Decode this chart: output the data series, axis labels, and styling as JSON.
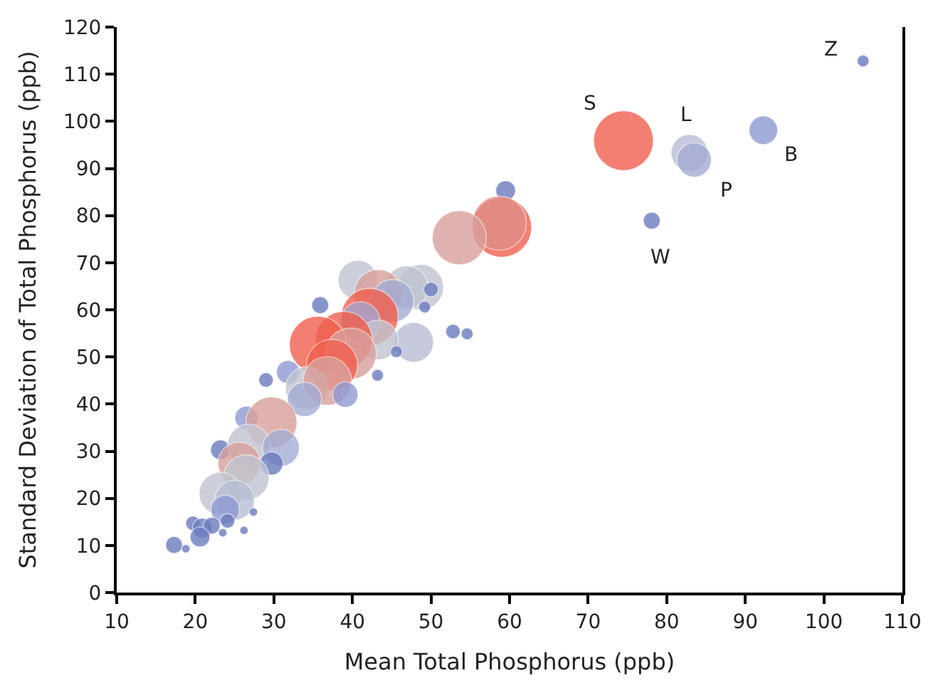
{
  "chart_data": {
    "type": "bubble",
    "xlabel": "Mean Total Phosphorus (ppb)",
    "ylabel": "Standard Deviation of Total Phosphorus (ppb)",
    "xlim": [
      10,
      110
    ],
    "xticks": [
      10,
      20,
      30,
      40,
      50,
      60,
      70,
      80,
      90,
      100,
      110
    ],
    "ylim": [
      0,
      120
    ],
    "yticks": [
      0,
      10,
      20,
      30,
      40,
      50,
      60,
      70,
      80,
      90,
      100,
      110,
      120
    ],
    "x": [
      105,
      74.5,
      82.9,
      83.5,
      92.3,
      78.1,
      59.5,
      59.0,
      58.7,
      53.6,
      40.7,
      48.7,
      46.9,
      43.3,
      45.1,
      50.0,
      49.2,
      35.9,
      42.2,
      41.0,
      52.8,
      54.6,
      47.8,
      43.3,
      45.6,
      38.9,
      35.6,
      39.8,
      37.4,
      43.2,
      29.0,
      31.8,
      34.2,
      36.8,
      39.1,
      33.9,
      26.5,
      29.7,
      23.2,
      26.8,
      30.9,
      25.6,
      29.7,
      26.5,
      23.2,
      25.0,
      23.8,
      27.4,
      19.7,
      20.9,
      22.1,
      20.6,
      23.5,
      26.2,
      17.3,
      18.8,
      24.1
    ],
    "values": [
      112.8,
      95.9,
      93.3,
      91.8,
      98.1,
      78.9,
      85.3,
      77.5,
      78.4,
      75.3,
      66.3,
      64.8,
      64.8,
      63.4,
      61.9,
      64.3,
      60.6,
      61.0,
      58.5,
      57.5,
      55.4,
      54.9,
      53.1,
      53.6,
      51.1,
      53.6,
      52.6,
      50.7,
      48.3,
      46.1,
      45.1,
      46.8,
      43.4,
      44.9,
      42.0,
      41.0,
      37.1,
      36.1,
      30.3,
      31.2,
      30.7,
      27.4,
      27.4,
      24.4,
      21.0,
      19.6,
      17.6,
      17.1,
      14.7,
      13.7,
      14.2,
      11.8,
      12.7,
      13.2,
      10.1,
      9.3,
      15.2
    ],
    "sizes": [
      0.04,
      1,
      0.38,
      0.33,
      0.23,
      0.08,
      0.11,
      1,
      0.82,
      0.82,
      0.44,
      0.58,
      0.51,
      0.66,
      0.51,
      0.06,
      0.04,
      0.08,
      0.91,
      0.44,
      0.06,
      0.04,
      0.44,
      0.44,
      0.04,
      0.91,
      0.91,
      0.73,
      0.73,
      0.04,
      0.06,
      0.15,
      0.51,
      0.66,
      0.18,
      0.33,
      0.15,
      0.73,
      0.11,
      0.51,
      0.38,
      0.51,
      0.15,
      0.58,
      0.51,
      0.44,
      0.23,
      0.02,
      0.06,
      0.11,
      0.08,
      0.11,
      0.02,
      0.02,
      0.08,
      0.02,
      0.06
    ],
    "colors": [
      "#6b7bbf",
      "#f0604f",
      "#b8bed4",
      "#a4acd4",
      "#8e9ad2",
      "#6b7bbf",
      "#6b7bbf",
      "#f0604f",
      "#e08f88",
      "#d9a09c",
      "#c0c4d0",
      "#c0c4d0",
      "#c0c4d0",
      "#d9a09c",
      "#a4acd4",
      "#6b7bbf",
      "#6b7bbf",
      "#6b7bbf",
      "#f0604f",
      "#a4a4d0",
      "#6b7bbf",
      "#6b7bbf",
      "#b8bed4",
      "#c0c4d0",
      "#6b7bbf",
      "#f0604f",
      "#f0604f",
      "#d9a09c",
      "#f0604f",
      "#6b7bbf",
      "#6b7bbf",
      "#8e9ad2",
      "#c0c4d0",
      "#d9a09c",
      "#8e9ad2",
      "#a4acd4",
      "#8e9ad2",
      "#d9a09c",
      "#6b7bbf",
      "#c0c4d0",
      "#a4acd4",
      "#d9a09c",
      "#6b7bbf",
      "#c0c4d0",
      "#c0c4d0",
      "#b8bed4",
      "#8e9ad2",
      "#6b7bbf",
      "#6b7bbf",
      "#6b7bbf",
      "#6b7bbf",
      "#6b7bbf",
      "#6b7bbf",
      "#6b7bbf",
      "#6b7bbf",
      "#6b7bbf",
      "#6b7bbf"
    ],
    "annotations": [
      {
        "text": "Z",
        "x": 105,
        "y": 112.8
      },
      {
        "text": "S",
        "x": 74.5,
        "y": 95.9
      },
      {
        "text": "L",
        "x": 82.9,
        "y": 93.3
      },
      {
        "text": "P",
        "x": 83.5,
        "y": 91.8
      },
      {
        "text": "B",
        "x": 92.3,
        "y": 98.1
      },
      {
        "text": "W",
        "x": 78.1,
        "y": 78.9
      }
    ]
  }
}
